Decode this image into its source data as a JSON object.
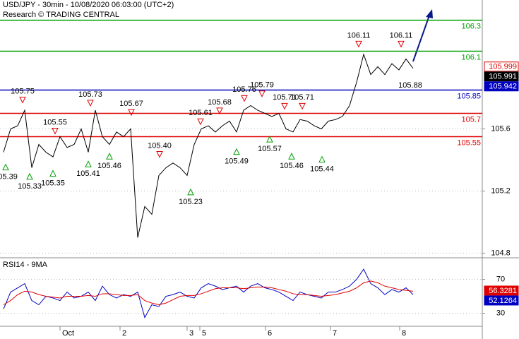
{
  "chart_data": [
    {
      "type": "line",
      "title": "USD/JPY - 30min - 10/08/2020 06:03:00 (UTC+2)",
      "subtitle": "Research © TRADING CENTRAL",
      "xlim": [
        -0.5,
        67.8
      ],
      "ylim": [
        104.77,
        106.43
      ],
      "yticks": [
        104.8,
        105.2,
        105.6
      ],
      "grid": true,
      "series": [
        {
          "color": "#000000",
          "values": [
            105.45,
            105.6,
            105.62,
            105.72,
            105.35,
            105.5,
            105.45,
            105.42,
            105.55,
            105.48,
            105.5,
            105.6,
            105.45,
            105.72,
            105.55,
            105.5,
            105.58,
            105.55,
            105.6,
            104.9,
            105.1,
            105.05,
            105.3,
            105.35,
            105.38,
            105.35,
            105.3,
            105.5,
            105.6,
            105.62,
            105.58,
            105.62,
            105.65,
            105.58,
            105.72,
            105.75,
            105.72,
            105.7,
            105.68,
            105.7,
            105.6,
            105.58,
            105.66,
            105.65,
            105.62,
            105.6,
            105.65,
            105.66,
            105.68,
            105.75,
            105.9,
            106.08,
            105.95,
            106.0,
            105.95,
            106.02,
            105.98,
            106.05,
            105.99
          ]
        }
      ],
      "levels": [
        {
          "value": 106.3,
          "color": "#00a000"
        },
        {
          "value": 106.1,
          "color": "#00a000"
        },
        {
          "value": 105.85,
          "color": "#0000c0"
        },
        {
          "value": 105.7,
          "color": "#e00000"
        },
        {
          "value": 105.55,
          "color": "#e00000"
        }
      ],
      "badges": [
        {
          "value": 105.999,
          "color": "#e00000",
          "filled": false
        },
        {
          "value": 105.991,
          "color": "#000000",
          "filled": true
        },
        {
          "value": 105.942,
          "color": "#0000c0",
          "filled": true
        }
      ],
      "annotations": [
        {
          "x": 2.7,
          "value": 105.75,
          "kind": "peak"
        },
        {
          "x": 7.3,
          "value": 105.55,
          "kind": "peak"
        },
        {
          "x": 12.3,
          "value": 105.73,
          "kind": "peak"
        },
        {
          "x": 18.1,
          "value": 105.67,
          "kind": "peak"
        },
        {
          "x": 22.1,
          "value": 105.4,
          "label": "105.40",
          "kind": "peak"
        },
        {
          "x": 27.9,
          "value": 105.61,
          "kind": "peak"
        },
        {
          "x": 30.6,
          "value": 105.68,
          "kind": "peak"
        },
        {
          "x": 34.1,
          "value": 105.76,
          "kind": "peak"
        },
        {
          "x": 36.6,
          "value": 105.79,
          "kind": "peak"
        },
        {
          "x": 39.8,
          "value": 105.71,
          "kind": "peak"
        },
        {
          "x": 42.3,
          "value": 105.71,
          "kind": "peak"
        },
        {
          "x": 50.3,
          "value": 106.11,
          "kind": "peak"
        },
        {
          "x": 56.3,
          "value": 106.11,
          "kind": "peak"
        },
        {
          "x": 0.3,
          "value": 105.39,
          "kind": "trough"
        },
        {
          "x": 3.7,
          "value": 105.33,
          "kind": "trough"
        },
        {
          "x": 7.0,
          "value": 105.35,
          "kind": "trough"
        },
        {
          "x": 12.0,
          "value": 105.41,
          "kind": "trough"
        },
        {
          "x": 15.0,
          "value": 105.46,
          "kind": "trough"
        },
        {
          "x": 26.5,
          "value": 105.23,
          "kind": "trough"
        },
        {
          "x": 33.0,
          "value": 105.49,
          "kind": "trough"
        },
        {
          "x": 37.7,
          "value": 105.57,
          "kind": "trough"
        },
        {
          "x": 40.8,
          "value": 105.46,
          "kind": "trough"
        },
        {
          "x": 45.1,
          "value": 105.44,
          "kind": "trough"
        },
        {
          "x": 57.6,
          "value": 105.88,
          "kind": "text"
        }
      ]
    },
    {
      "type": "line",
      "title": "RSI14 - 9MA",
      "xlim": [
        -0.5,
        67.8
      ],
      "ylim": [
        14.6,
        93.8
      ],
      "yticks": [
        30,
        70
      ],
      "grid": true,
      "xticks": [
        {
          "value": 8,
          "label": "Oct"
        },
        {
          "value": 16.5,
          "label": "2"
        },
        {
          "value": 26,
          "label": "3"
        },
        {
          "value": 27.8,
          "label": "5"
        },
        {
          "value": 37.1,
          "label": "6"
        },
        {
          "value": 46.3,
          "label": "7"
        },
        {
          "value": 56.1,
          "label": "8"
        }
      ],
      "series": [
        {
          "color": "#0000c0",
          "values": [
            35,
            55,
            60,
            65,
            45,
            40,
            50,
            48,
            45,
            55,
            48,
            50,
            55,
            45,
            62,
            52,
            48,
            52,
            50,
            55,
            25,
            40,
            38,
            50,
            52,
            55,
            50,
            48,
            60,
            65,
            62,
            58,
            60,
            62,
            55,
            62,
            65,
            60,
            58,
            55,
            50,
            45,
            55,
            52,
            50,
            48,
            55,
            55,
            58,
            62,
            70,
            82,
            65,
            60,
            52,
            58,
            55,
            60,
            52
          ]
        },
        {
          "color": "#e00000",
          "values": [
            40,
            45,
            52,
            56,
            55,
            52,
            50,
            49,
            48,
            50,
            50,
            50,
            51,
            50,
            53,
            53,
            52,
            51,
            51,
            52,
            45,
            42,
            40,
            42,
            46,
            50,
            51,
            51,
            53,
            56,
            59,
            60,
            60,
            60,
            59,
            60,
            61,
            61,
            60,
            58,
            56,
            53,
            52,
            52,
            51,
            50,
            51,
            52,
            54,
            56,
            60,
            66,
            68,
            66,
            62,
            60,
            58,
            57,
            56
          ]
        }
      ],
      "badges": [
        {
          "value": 56.3281,
          "color": "#e00000",
          "filled": true
        },
        {
          "value": 52.1264,
          "color": "#0000c0",
          "filled": true
        }
      ]
    }
  ]
}
